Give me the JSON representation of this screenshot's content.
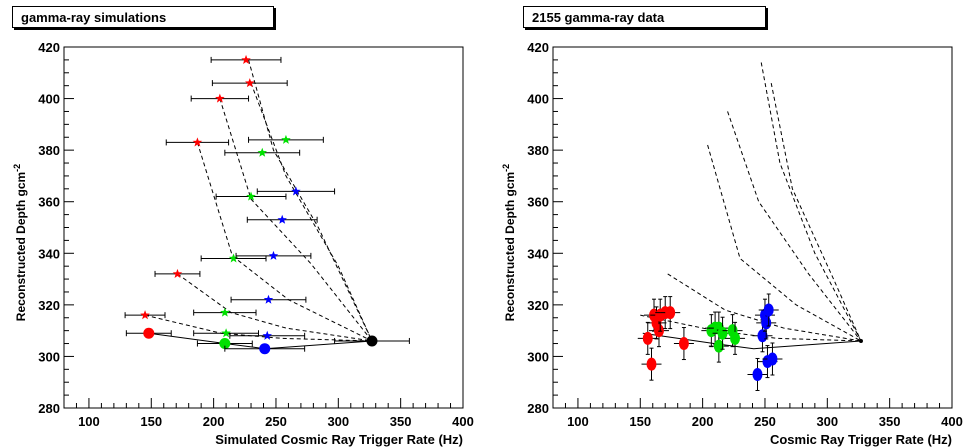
{
  "chart_data": [
    {
      "type": "scatter",
      "title": "gamma-ray simulations",
      "xlabel": "Simulated Cosmic Ray Trigger Rate (Hz)",
      "ylabel": "Reconstructed Depth gcm",
      "ylabel_sup": "-2",
      "xlim": [
        80,
        400
      ],
      "ylim": [
        280,
        420
      ],
      "xticks": [
        "100",
        "150",
        "200",
        "250",
        "300",
        "350",
        "400"
      ],
      "yticks": [
        "280",
        "300",
        "320",
        "340",
        "360",
        "380",
        "400",
        "420"
      ],
      "colors": {
        "red": "#ff0000",
        "green": "#00e000",
        "blue": "#0000ff",
        "black": "#000000"
      },
      "stars": [
        {
          "x": 226,
          "y": 415,
          "xerr": 28,
          "color": "red"
        },
        {
          "x": 229,
          "y": 406,
          "xerr": 30,
          "color": "red"
        },
        {
          "x": 205,
          "y": 400,
          "xerr": 23,
          "color": "red"
        },
        {
          "x": 187,
          "y": 383,
          "xerr": 25,
          "color": "red"
        },
        {
          "x": 171,
          "y": 332,
          "xerr": 18,
          "color": "red"
        },
        {
          "x": 145,
          "y": 316,
          "xerr": 16,
          "color": "red"
        },
        {
          "x": 258,
          "y": 384,
          "xerr": 30,
          "color": "green"
        },
        {
          "x": 239,
          "y": 379,
          "xerr": 30,
          "color": "green"
        },
        {
          "x": 230,
          "y": 362,
          "xerr": 28,
          "color": "green"
        },
        {
          "x": 216,
          "y": 338,
          "xerr": 26,
          "color": "green"
        },
        {
          "x": 209,
          "y": 317,
          "xerr": 25,
          "color": "green"
        },
        {
          "x": 210,
          "y": 309,
          "xerr": 26,
          "color": "green"
        },
        {
          "x": 266,
          "y": 364,
          "xerr": 31,
          "color": "blue"
        },
        {
          "x": 255,
          "y": 353,
          "xerr": 28,
          "color": "blue"
        },
        {
          "x": 248,
          "y": 339,
          "xerr": 30,
          "color": "blue"
        },
        {
          "x": 244,
          "y": 322,
          "xerr": 30,
          "color": "blue"
        },
        {
          "x": 243,
          "y": 308,
          "xerr": 30,
          "color": "blue"
        }
      ],
      "circles": [
        {
          "x": 148,
          "y": 309,
          "xerr": 18,
          "color": "red"
        },
        {
          "x": 209,
          "y": 305,
          "xerr": 22,
          "color": "green"
        },
        {
          "x": 241,
          "y": 303,
          "xerr": 32,
          "color": "blue"
        },
        {
          "x": 327,
          "y": 306,
          "xerr": 30,
          "color": "black"
        }
      ],
      "dashed_curves": [
        [
          [
            228,
            415
          ],
          [
            248,
            380
          ],
          [
            284,
            350
          ],
          [
            327,
            306
          ]
        ],
        [
          [
            230,
            406
          ],
          [
            258,
            370
          ],
          [
            300,
            335
          ],
          [
            327,
            306
          ]
        ],
        [
          [
            205,
            400
          ],
          [
            230,
            361
          ],
          [
            278,
            336
          ],
          [
            327,
            306
          ]
        ],
        [
          [
            187,
            383
          ],
          [
            215,
            339
          ],
          [
            260,
            322
          ],
          [
            327,
            306
          ]
        ],
        [
          [
            171,
            332
          ],
          [
            214,
            317
          ],
          [
            258,
            311
          ],
          [
            327,
            306
          ]
        ],
        [
          [
            145,
            316
          ],
          [
            206,
            309
          ],
          [
            255,
            307
          ],
          [
            327,
            306
          ]
        ]
      ],
      "solid_line": [
        [
          148,
          309
        ],
        [
          209,
          305
        ],
        [
          241,
          303
        ],
        [
          327,
          306
        ]
      ]
    },
    {
      "type": "scatter",
      "title": "2155 gamma-ray data",
      "xlabel": "Cosmic Ray Trigger Rate (Hz)",
      "ylabel": "Reconstructed Depth gcm",
      "ylabel_sup": "-2",
      "xlim": [
        80,
        400
      ],
      "ylim": [
        280,
        420
      ],
      "xticks": [
        "100",
        "150",
        "200",
        "250",
        "300",
        "350",
        "400"
      ],
      "yticks": [
        "280",
        "300",
        "320",
        "340",
        "360",
        "380",
        "400",
        "420"
      ],
      "colors": {
        "red": "#ff0000",
        "green": "#00e000",
        "blue": "#0000ff",
        "black": "#000000"
      },
      "points": [
        {
          "x": 156,
          "y": 307,
          "color": "red"
        },
        {
          "x": 159,
          "y": 297,
          "color": "red"
        },
        {
          "x": 161,
          "y": 316,
          "color": "red"
        },
        {
          "x": 163,
          "y": 313,
          "color": "red"
        },
        {
          "x": 165,
          "y": 310,
          "color": "red"
        },
        {
          "x": 166,
          "y": 316,
          "color": "red"
        },
        {
          "x": 170,
          "y": 317,
          "color": "red"
        },
        {
          "x": 174,
          "y": 317,
          "color": "red"
        },
        {
          "x": 185,
          "y": 305,
          "color": "red"
        },
        {
          "x": 207,
          "y": 310,
          "color": "green"
        },
        {
          "x": 210,
          "y": 311,
          "color": "green"
        },
        {
          "x": 213,
          "y": 311,
          "color": "green"
        },
        {
          "x": 213,
          "y": 304,
          "color": "green"
        },
        {
          "x": 216,
          "y": 309,
          "color": "green"
        },
        {
          "x": 224,
          "y": 310,
          "color": "green"
        },
        {
          "x": 226,
          "y": 307,
          "color": "green"
        },
        {
          "x": 244,
          "y": 293,
          "color": "blue"
        },
        {
          "x": 248,
          "y": 308,
          "color": "blue"
        },
        {
          "x": 250,
          "y": 316,
          "color": "blue"
        },
        {
          "x": 251,
          "y": 313,
          "color": "blue"
        },
        {
          "x": 252,
          "y": 298,
          "color": "blue"
        },
        {
          "x": 253,
          "y": 318,
          "color": "blue"
        },
        {
          "x": 256,
          "y": 299,
          "color": "blue"
        }
      ],
      "dashed_curves": [
        [
          [
            247,
            414
          ],
          [
            262,
            375
          ],
          [
            290,
            340
          ],
          [
            327,
            306
          ]
        ],
        [
          [
            255,
            406
          ],
          [
            272,
            365
          ],
          [
            305,
            330
          ],
          [
            327,
            306
          ]
        ],
        [
          [
            220,
            395
          ],
          [
            245,
            360
          ],
          [
            285,
            332
          ],
          [
            327,
            306
          ]
        ],
        [
          [
            204,
            382
          ],
          [
            230,
            338
          ],
          [
            275,
            320
          ],
          [
            327,
            306
          ]
        ],
        [
          [
            172,
            332
          ],
          [
            218,
            318
          ],
          [
            265,
            311
          ],
          [
            327,
            306
          ]
        ],
        [
          [
            150,
            316
          ],
          [
            210,
            310
          ],
          [
            260,
            307
          ],
          [
            327,
            306
          ]
        ]
      ],
      "solid_line": [
        [
          152,
          309
        ],
        [
          209,
          305
        ],
        [
          241,
          303
        ],
        [
          327,
          306
        ]
      ],
      "end_point": {
        "x": 327,
        "y": 306
      }
    }
  ]
}
